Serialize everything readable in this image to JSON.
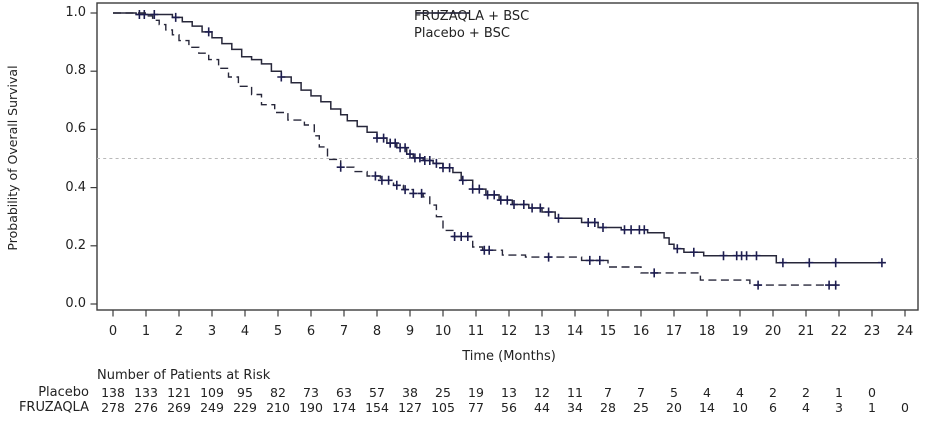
{
  "chart_data": {
    "type": "line",
    "subtype": "kaplan-meier-step",
    "title": "",
    "xlabel": "Time (Months)",
    "ylabel": "Probability of Overall Survival",
    "xlim": [
      0,
      24
    ],
    "ylim": [
      0.0,
      1.0
    ],
    "x_ticks": [
      0,
      1,
      2,
      3,
      4,
      5,
      6,
      7,
      8,
      9,
      10,
      11,
      12,
      13,
      14,
      15,
      16,
      17,
      18,
      19,
      20,
      21,
      22,
      23,
      24
    ],
    "y_ticks": [
      "1.0",
      "0.8",
      "0.6",
      "0.4",
      "0.2",
      "0.0"
    ],
    "y_tick_values": [
      1.0,
      0.8,
      0.6,
      0.4,
      0.2,
      0.0
    ],
    "grid": "off",
    "reference_line_y": 0.5,
    "legend_position": "top-center-right",
    "colors": {
      "line": "#27273a",
      "censor_mark": "#1d1d4f",
      "reference_line": "#b9b9b9",
      "frame": "#3c3c3c",
      "text": "#1f1f1f",
      "background": "#ffffff"
    },
    "series": [
      {
        "name": "FRUZAQLA + BSC",
        "style": "solid",
        "end_time": 23.35,
        "steps": [
          [
            0,
            1.0
          ],
          [
            0.7,
            0.995
          ],
          [
            1.8,
            0.985
          ],
          [
            2.1,
            0.97
          ],
          [
            2.4,
            0.955
          ],
          [
            2.7,
            0.935
          ],
          [
            3.0,
            0.915
          ],
          [
            3.3,
            0.895
          ],
          [
            3.6,
            0.875
          ],
          [
            3.9,
            0.85
          ],
          [
            4.2,
            0.84
          ],
          [
            4.5,
            0.825
          ],
          [
            4.8,
            0.8
          ],
          [
            5.1,
            0.78
          ],
          [
            5.4,
            0.76
          ],
          [
            5.7,
            0.735
          ],
          [
            6.0,
            0.715
          ],
          [
            6.3,
            0.695
          ],
          [
            6.6,
            0.67
          ],
          [
            6.9,
            0.65
          ],
          [
            7.1,
            0.63
          ],
          [
            7.4,
            0.61
          ],
          [
            7.7,
            0.59
          ],
          [
            8.0,
            0.57
          ],
          [
            8.3,
            0.553
          ],
          [
            8.6,
            0.537
          ],
          [
            8.9,
            0.515
          ],
          [
            9.1,
            0.502
          ],
          [
            9.4,
            0.493
          ],
          [
            9.7,
            0.483
          ],
          [
            10.0,
            0.468
          ],
          [
            10.3,
            0.452
          ],
          [
            10.55,
            0.425
          ],
          [
            10.9,
            0.395
          ],
          [
            11.3,
            0.375
          ],
          [
            11.7,
            0.357
          ],
          [
            12.1,
            0.342
          ],
          [
            12.6,
            0.33
          ],
          [
            13.0,
            0.316
          ],
          [
            13.4,
            0.295
          ],
          [
            14.2,
            0.28
          ],
          [
            14.7,
            0.263
          ],
          [
            15.4,
            0.255
          ],
          [
            16.2,
            0.245
          ],
          [
            16.7,
            0.227
          ],
          [
            16.85,
            0.205
          ],
          [
            17.0,
            0.19
          ],
          [
            17.3,
            0.178
          ],
          [
            17.9,
            0.166
          ],
          [
            20.1,
            0.142
          ]
        ],
        "censor_times": [
          0.8,
          0.95,
          1.25,
          1.9,
          2.9,
          5.1,
          8.0,
          8.2,
          8.4,
          8.55,
          8.7,
          8.85,
          9.0,
          9.15,
          9.3,
          9.45,
          9.6,
          9.8,
          10.0,
          10.2,
          10.6,
          10.9,
          11.1,
          11.35,
          11.55,
          11.75,
          11.95,
          12.15,
          12.45,
          12.7,
          12.95,
          13.2,
          13.5,
          14.4,
          14.6,
          14.85,
          15.5,
          15.7,
          15.95,
          16.1,
          17.1,
          17.6,
          18.5,
          18.9,
          19.05,
          19.2,
          19.5,
          20.3,
          21.1,
          21.9,
          23.3
        ]
      },
      {
        "name": "Placebo + BSC",
        "style": "dashed",
        "end_time": 22.0,
        "steps": [
          [
            0,
            1.0
          ],
          [
            1.0,
            0.99
          ],
          [
            1.2,
            0.975
          ],
          [
            1.4,
            0.96
          ],
          [
            1.6,
            0.942
          ],
          [
            1.8,
            0.925
          ],
          [
            2.0,
            0.905
          ],
          [
            2.3,
            0.882
          ],
          [
            2.6,
            0.862
          ],
          [
            2.9,
            0.84
          ],
          [
            3.2,
            0.81
          ],
          [
            3.5,
            0.78
          ],
          [
            3.8,
            0.748
          ],
          [
            4.2,
            0.72
          ],
          [
            4.5,
            0.685
          ],
          [
            4.9,
            0.658
          ],
          [
            5.3,
            0.632
          ],
          [
            5.8,
            0.615
          ],
          [
            6.1,
            0.578
          ],
          [
            6.25,
            0.54
          ],
          [
            6.5,
            0.497
          ],
          [
            6.9,
            0.47
          ],
          [
            7.3,
            0.455
          ],
          [
            7.7,
            0.44
          ],
          [
            8.1,
            0.425
          ],
          [
            8.5,
            0.408
          ],
          [
            8.8,
            0.393
          ],
          [
            9.1,
            0.38
          ],
          [
            9.4,
            0.368
          ],
          [
            9.6,
            0.34
          ],
          [
            9.8,
            0.3
          ],
          [
            10.0,
            0.253
          ],
          [
            10.3,
            0.232
          ],
          [
            10.9,
            0.196
          ],
          [
            11.2,
            0.185
          ],
          [
            11.8,
            0.168
          ],
          [
            12.5,
            0.161
          ],
          [
            14.2,
            0.15
          ],
          [
            15.0,
            0.127
          ],
          [
            16.0,
            0.107
          ],
          [
            17.8,
            0.082
          ],
          [
            19.3,
            0.065
          ]
        ],
        "censor_times": [
          6.9,
          7.95,
          8.15,
          8.35,
          8.6,
          8.85,
          9.1,
          9.35,
          10.35,
          10.55,
          10.75,
          11.25,
          11.4,
          13.2,
          14.45,
          14.75,
          16.4,
          19.55,
          21.7,
          21.9
        ]
      }
    ]
  },
  "risk_table": {
    "title": "Number of Patients at Risk",
    "rows": [
      {
        "label": "Placebo",
        "counts": [
          138,
          133,
          121,
          109,
          95,
          82,
          73,
          63,
          57,
          38,
          25,
          19,
          13,
          12,
          11,
          7,
          7,
          5,
          4,
          4,
          2,
          2,
          1,
          0
        ]
      },
      {
        "label": "FRUZAQLA",
        "counts": [
          278,
          276,
          269,
          249,
          229,
          210,
          190,
          174,
          154,
          127,
          105,
          77,
          56,
          44,
          34,
          28,
          25,
          20,
          14,
          10,
          6,
          4,
          3,
          1,
          0
        ]
      }
    ]
  }
}
